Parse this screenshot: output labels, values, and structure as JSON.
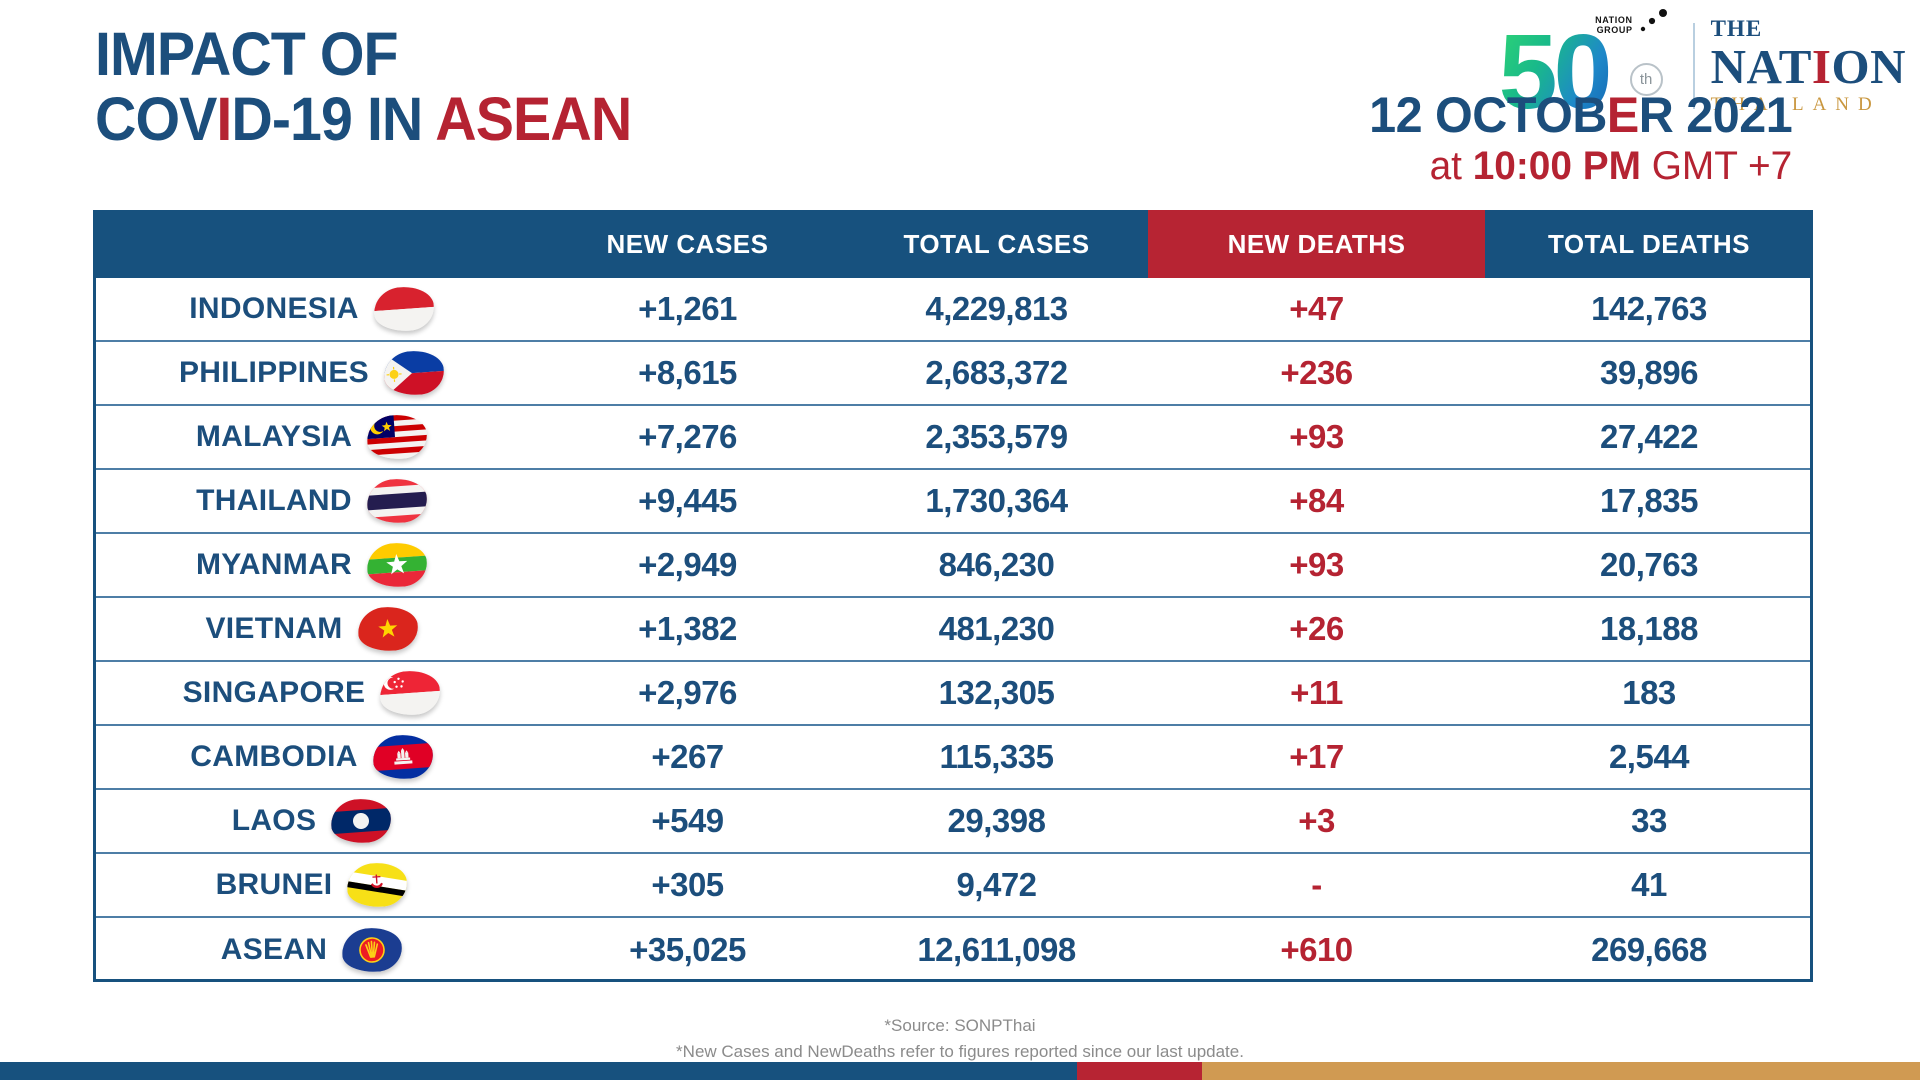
{
  "header": {
    "title": {
      "line1_parts": [
        {
          "text": "IMPACT OF",
          "color": "text_blue"
        }
      ],
      "line2_parts": [
        {
          "text": "COV",
          "color": "text_blue"
        },
        {
          "text": "I",
          "color": "text_red"
        },
        {
          "text": "D-19 IN ",
          "color": "text_blue"
        },
        {
          "text": "ASEAN",
          "color": "text_red"
        }
      ]
    },
    "date": {
      "line1_parts": [
        {
          "text": "12 OCTOB",
          "color": "text_blue"
        },
        {
          "text": "E",
          "color": "text_red"
        },
        {
          "text": "R 2021",
          "color": "text_blue"
        }
      ],
      "line2_parts": [
        {
          "text": "at ",
          "color": "text_red",
          "weight": "normal"
        },
        {
          "text": "10:00 PM",
          "color": "text_red",
          "weight": "bold"
        },
        {
          "text": " GMT +7",
          "color": "text_red",
          "weight": "normal"
        }
      ]
    },
    "logo": {
      "group_line1": "NATION",
      "group_line2": "GROUP",
      "anniversary": "50",
      "suffix": "th",
      "the": "THE",
      "nation_parts": [
        {
          "text": "NAT",
          "color": "text_blue"
        },
        {
          "text": "I",
          "color": "text_red"
        },
        {
          "text": "ON",
          "color": "text_blue"
        }
      ],
      "thailand": "THAILAND"
    }
  },
  "chart_data": {
    "type": "table",
    "title": "IMPACT OF COVID-19 IN ASEAN",
    "as_of_date": "12 OCTOBER 2021",
    "as_of_time": "at 10:00 PM GMT +7",
    "columns": [
      "NEW CASES",
      "TOTAL CASES",
      "NEW DEATHS",
      "TOTAL DEATHS"
    ],
    "rows": [
      {
        "country": "INDONESIA",
        "flag": "indonesia-flag",
        "values": [
          "+1,261",
          "4,229,813",
          "+47",
          "142,763"
        ]
      },
      {
        "country": "PHILIPPINES",
        "flag": "philippines-flag",
        "values": [
          "+8,615",
          "2,683,372",
          "+236",
          "39,896"
        ]
      },
      {
        "country": "MALAYSIA",
        "flag": "malaysia-flag",
        "values": [
          "+7,276",
          "2,353,579",
          "+93",
          "27,422"
        ]
      },
      {
        "country": "THAILAND",
        "flag": "thailand-flag",
        "values": [
          "+9,445",
          "1,730,364",
          "+84",
          "17,835"
        ]
      },
      {
        "country": "MYANMAR",
        "flag": "myanmar-flag",
        "values": [
          "+2,949",
          "846,230",
          "+93",
          "20,763"
        ]
      },
      {
        "country": "VIETNAM",
        "flag": "vietnam-flag",
        "values": [
          "+1,382",
          "481,230",
          "+26",
          "18,188"
        ]
      },
      {
        "country": "SINGAPORE",
        "flag": "singapore-flag",
        "values": [
          "+2,976",
          "132,305",
          "+11",
          "183"
        ]
      },
      {
        "country": "CAMBODIA",
        "flag": "cambodia-flag",
        "values": [
          "+267",
          "115,335",
          "+17",
          "2,544"
        ]
      },
      {
        "country": "LAOS",
        "flag": "laos-flag",
        "values": [
          "+549",
          "29,398",
          "+3",
          "33"
        ]
      },
      {
        "country": "BRUNEI",
        "flag": "brunei-flag",
        "values": [
          "+305",
          "9,472",
          "-",
          "41"
        ]
      },
      {
        "country": "ASEAN",
        "flag": "asean-flag",
        "values": [
          "+35,025",
          "12,611,098",
          "+610",
          "269,668"
        ]
      }
    ]
  },
  "footer": {
    "source": "*Source: SONPThai",
    "note": "*New Cases and NewDeaths refer to figures reported since our last update."
  },
  "colors": {
    "header_blue": "#17517E",
    "header_red": "#B72433",
    "text_blue": "#1C4E7C",
    "text_red": "#B52332",
    "row_line": "#4D7EA6",
    "footer_gray": "#8B8B8B",
    "logo_gold": "#C9973F"
  },
  "bottom_bar": {
    "segments": [
      {
        "name": "blue-segment",
        "color": "#17517E",
        "width_pct": 56.1
      },
      {
        "name": "red-segment",
        "color": "#B72433",
        "width_pct": 6.5
      },
      {
        "name": "gold-segment",
        "color": "#D09A52",
        "width_pct": 37.4
      }
    ]
  }
}
